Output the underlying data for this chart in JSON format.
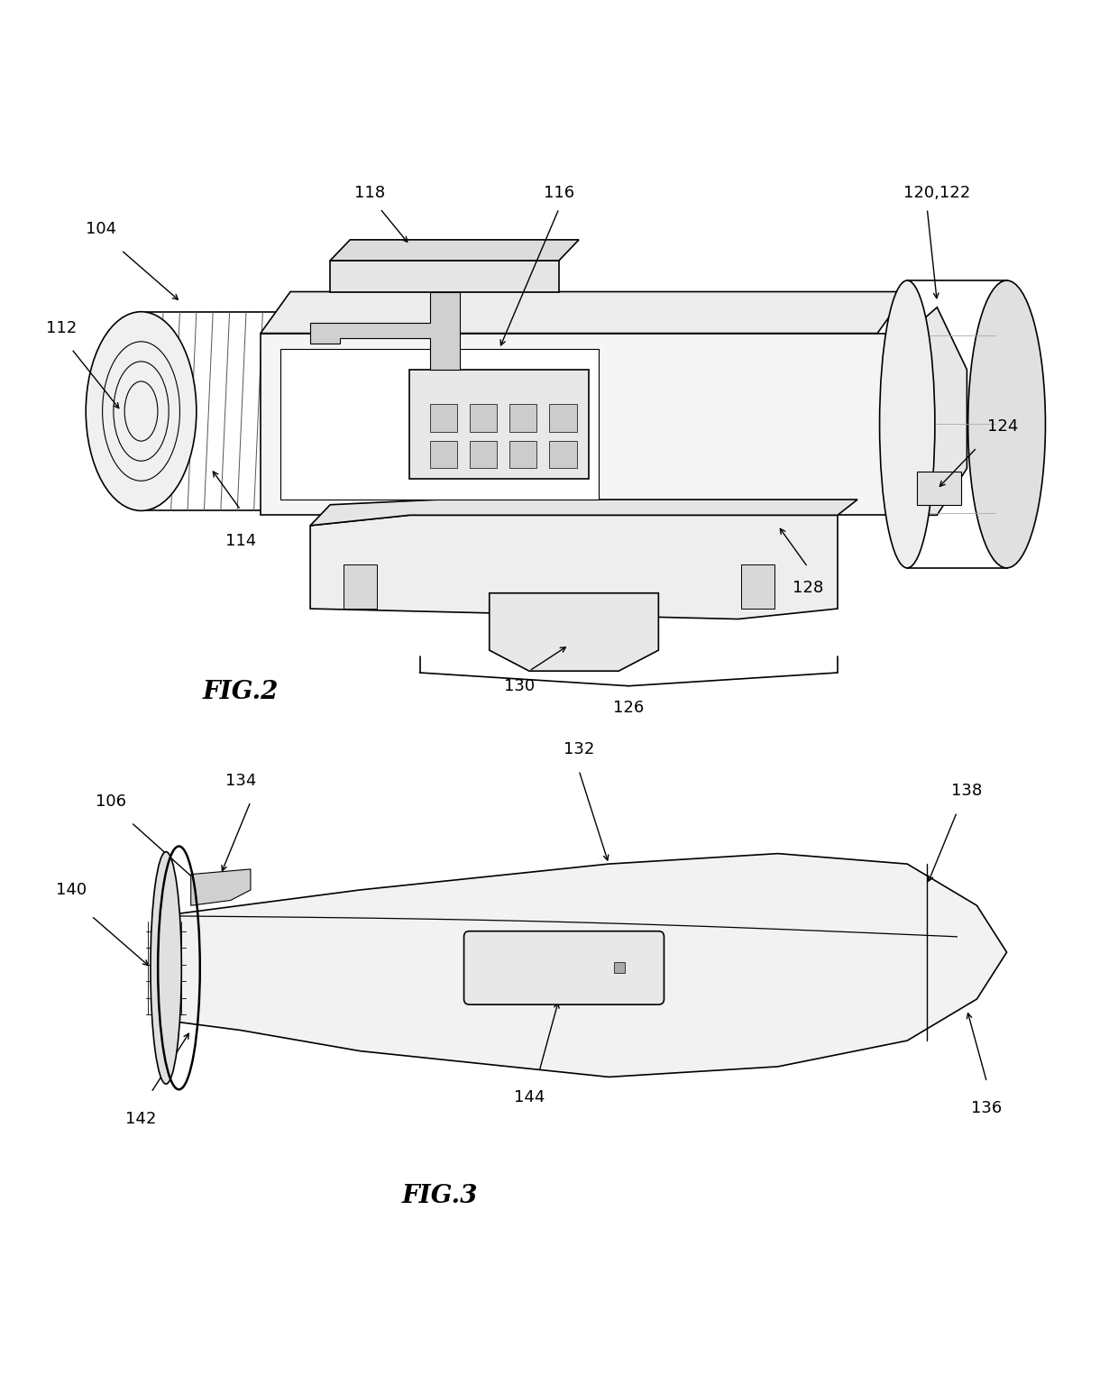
{
  "fig_title": "",
  "background_color": "#ffffff",
  "fig2_label": "FIG.2",
  "fig3_label": "FIG.3",
  "font_size_labels": 13,
  "font_size_fig": 20,
  "line_color": "#000000",
  "line_width": 1.2
}
